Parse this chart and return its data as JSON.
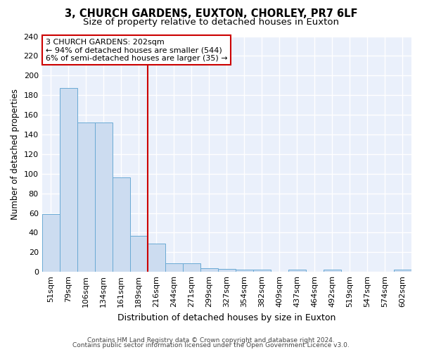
{
  "title1": "3, CHURCH GARDENS, EUXTON, CHORLEY, PR7 6LF",
  "title2": "Size of property relative to detached houses in Euxton",
  "xlabel": "Distribution of detached houses by size in Euxton",
  "ylabel": "Number of detached properties",
  "categories": [
    "51sqm",
    "79sqm",
    "106sqm",
    "134sqm",
    "161sqm",
    "189sqm",
    "216sqm",
    "244sqm",
    "271sqm",
    "299sqm",
    "327sqm",
    "354sqm",
    "382sqm",
    "409sqm",
    "437sqm",
    "464sqm",
    "492sqm",
    "519sqm",
    "547sqm",
    "574sqm",
    "602sqm"
  ],
  "values": [
    59,
    187,
    152,
    152,
    96,
    37,
    29,
    9,
    9,
    4,
    3,
    2,
    2,
    0,
    2,
    0,
    2,
    0,
    0,
    0,
    2
  ],
  "bar_color": "#ccdcf0",
  "bar_edge_color": "#6aaad4",
  "vline_x_index": 6,
  "vline_color": "#cc0000",
  "annotation_text": "3 CHURCH GARDENS: 202sqm\n← 94% of detached houses are smaller (544)\n6% of semi-detached houses are larger (35) →",
  "annotation_box_color": "#ffffff",
  "annotation_box_edge": "#cc0000",
  "ylim": [
    0,
    240
  ],
  "yticks": [
    0,
    20,
    40,
    60,
    80,
    100,
    120,
    140,
    160,
    180,
    200,
    220,
    240
  ],
  "background_color": "#eaf0fb",
  "grid_color": "#ffffff",
  "footer1": "Contains HM Land Registry data © Crown copyright and database right 2024.",
  "footer2": "Contains public sector information licensed under the Open Government Licence v3.0.",
  "title1_fontsize": 10.5,
  "title2_fontsize": 9.5,
  "xlabel_fontsize": 9,
  "ylabel_fontsize": 8.5,
  "tick_fontsize": 8,
  "annot_fontsize": 8,
  "footer_fontsize": 6.5
}
